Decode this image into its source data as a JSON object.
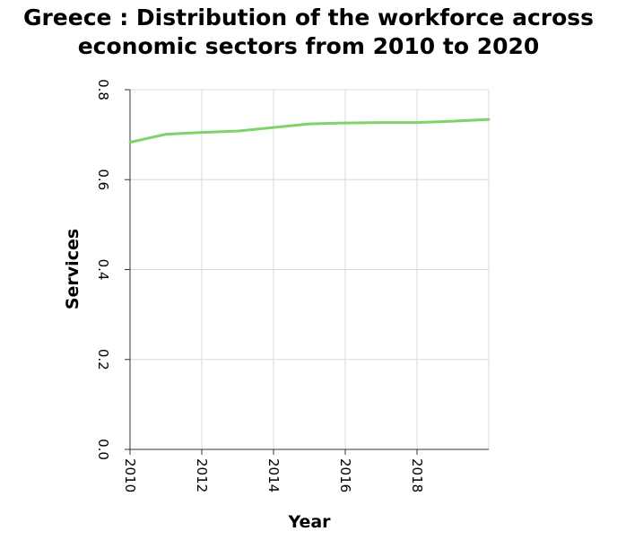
{
  "chart_data": {
    "type": "line",
    "title_line1": "Greece : Distribution of the workforce across",
    "title_line2": "economic sectors from 2010 to 2020",
    "xlabel": "Year",
    "ylabel": "Services",
    "xlim": [
      2010,
      2020
    ],
    "ylim": [
      0.0,
      0.8
    ],
    "x_ticks": [
      "2010",
      "2012",
      "2014",
      "2016",
      "2018"
    ],
    "y_ticks": [
      "0.0",
      "0.2",
      "0.4",
      "0.6",
      "0.8"
    ],
    "grid": true,
    "series": [
      {
        "color": "#7fd36a",
        "x": [
          2010,
          2011,
          2012,
          2013,
          2014,
          2015,
          2016,
          2017,
          2018,
          2019,
          2020
        ],
        "values": [
          0.683,
          0.701,
          0.705,
          0.708,
          0.716,
          0.724,
          0.726,
          0.727,
          0.727,
          0.73,
          0.734
        ]
      }
    ]
  }
}
